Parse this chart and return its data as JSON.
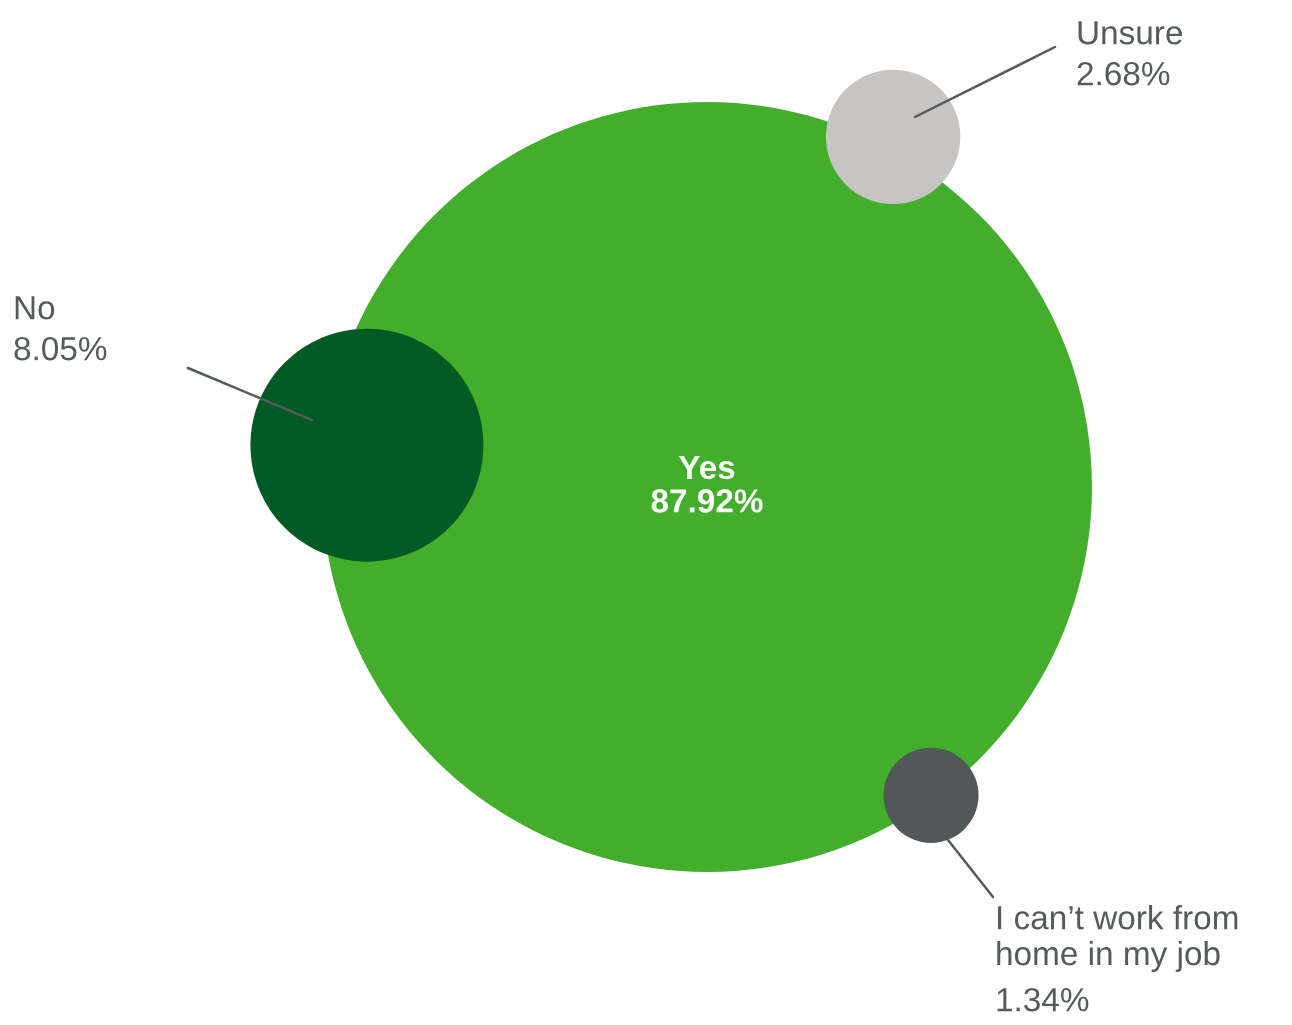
{
  "chart_data": {
    "type": "other",
    "categories": [
      "Yes",
      "No",
      "Unsure",
      "I can’t work from home in my job"
    ],
    "values": [
      87.92,
      8.05,
      2.68,
      1.34
    ],
    "value_labels": [
      "87.92%",
      "8.05%",
      "2.68%",
      "1.34%"
    ],
    "colors": [
      "#43ae2b",
      "#005a23",
      "#c6c5c3",
      "#505858"
    ]
  }
}
